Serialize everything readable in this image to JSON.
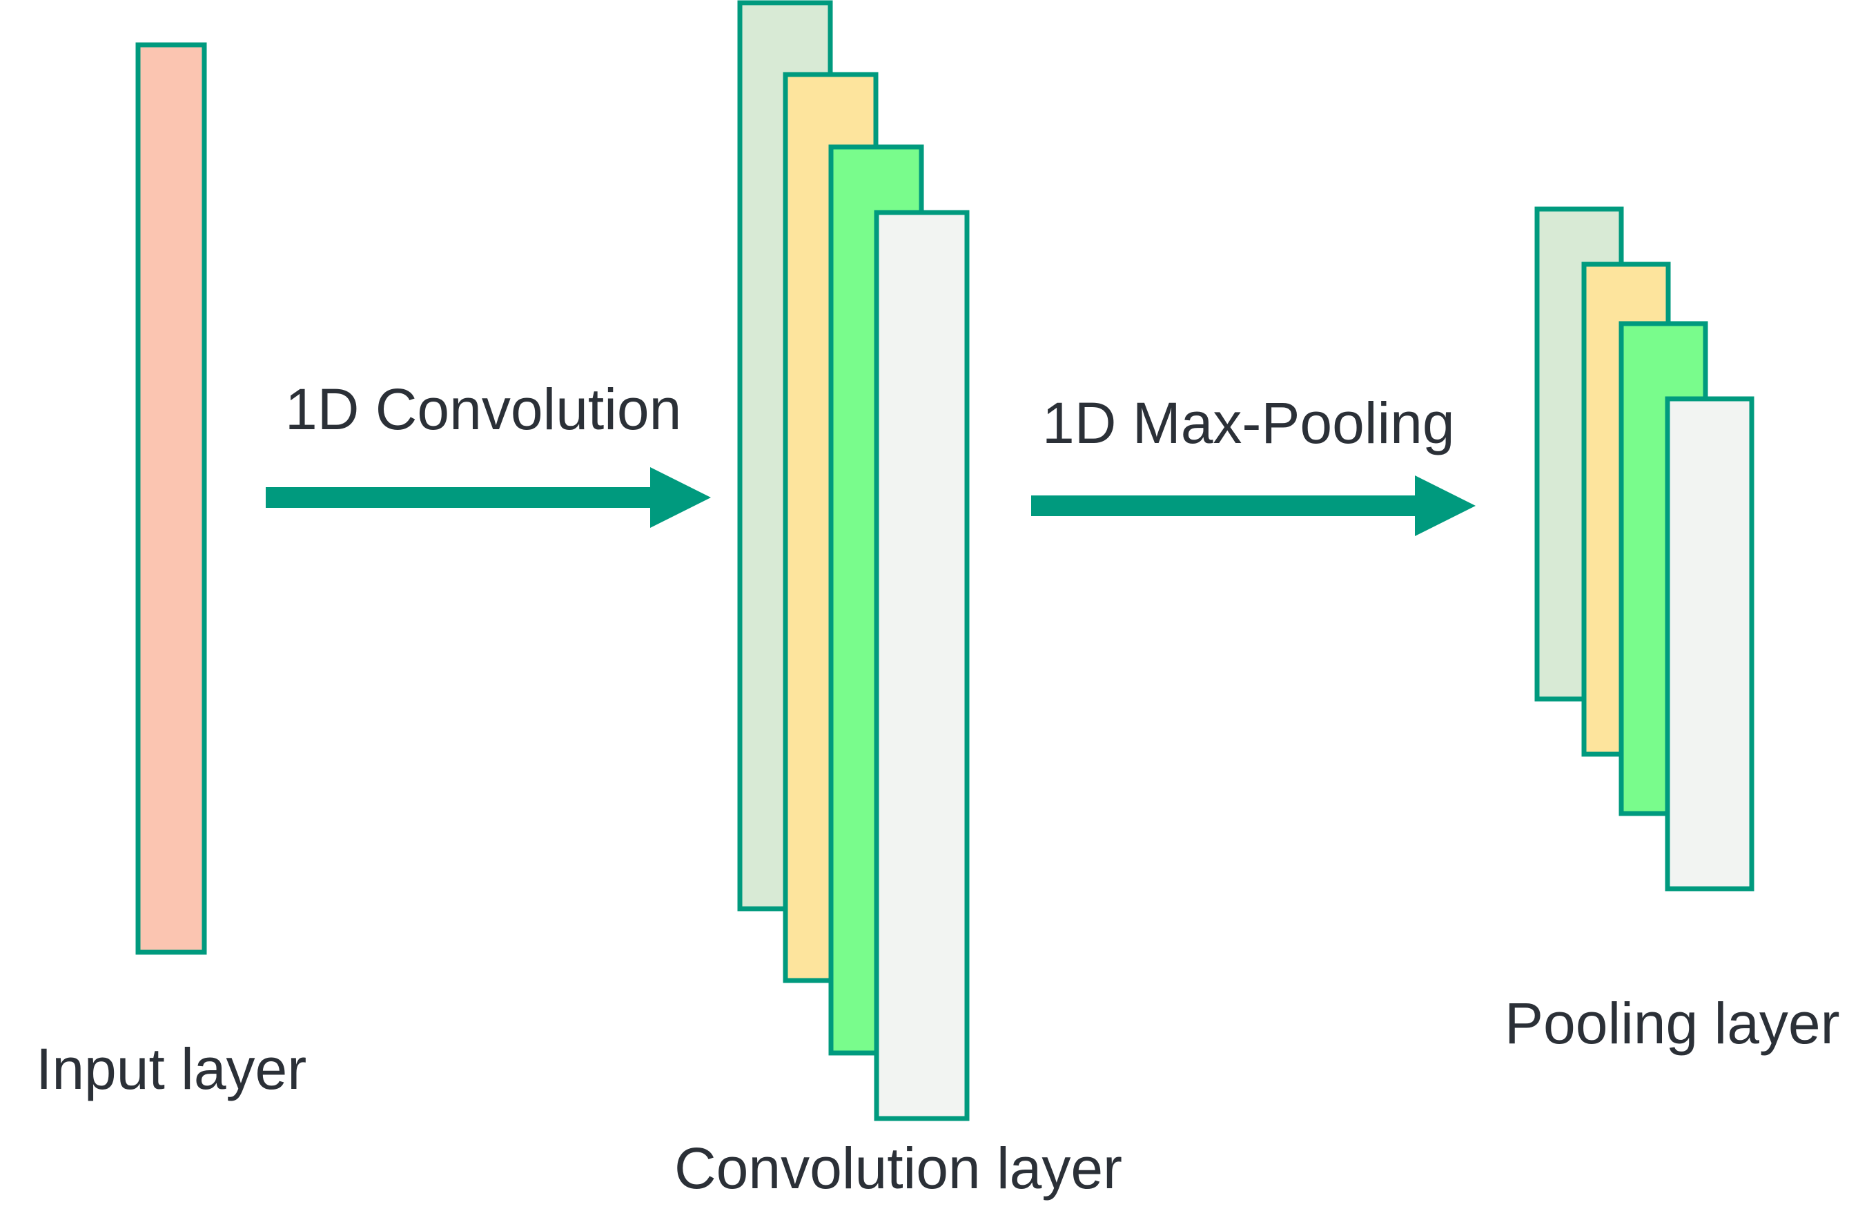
{
  "colors": {
    "accent": "#009a7e",
    "input_fill": "#fbc5b1",
    "map_fills": [
      "#d8ead5",
      "#fde49d",
      "#79fc8c",
      "#f2f4f2"
    ],
    "label_color": "#2b3037",
    "background": "#ffffff"
  },
  "labels": {
    "input_layer": "Input layer",
    "convolution_layer": "Convolution layer",
    "pooling_layer": "Pooling layer",
    "convolution_op": "1D Convolution",
    "pooling_op": "1D Max-Pooling"
  },
  "icons": {
    "arrow": "right-arrow-icon"
  }
}
